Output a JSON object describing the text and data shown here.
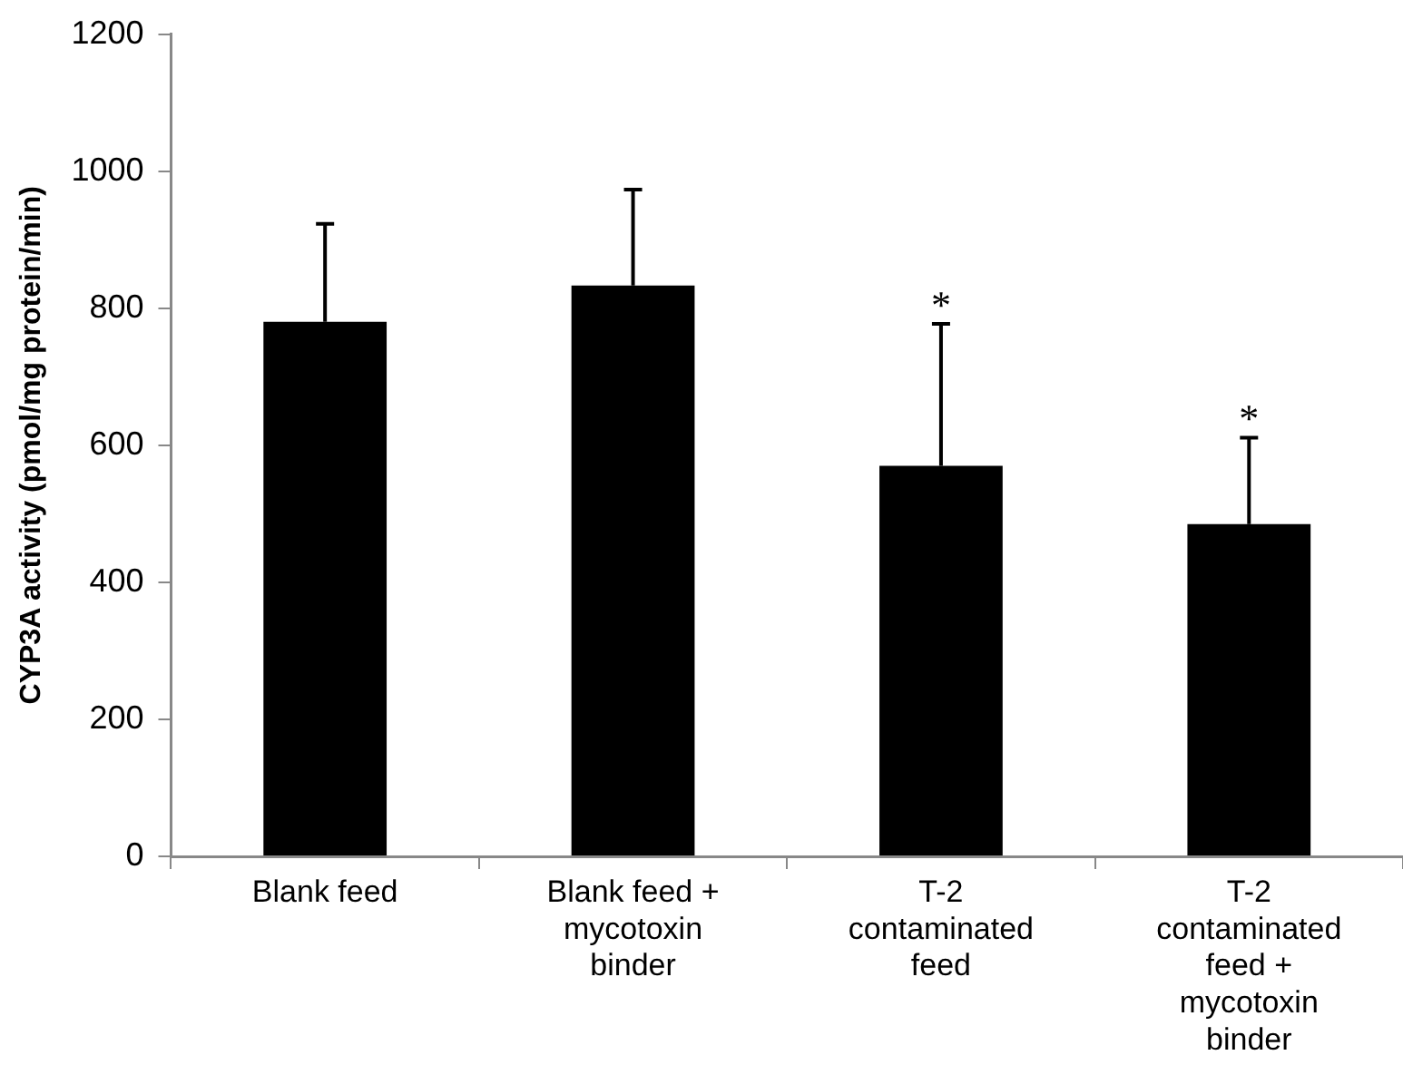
{
  "chart_data": {
    "type": "bar",
    "ylabel": "CYP3A activity (pmol/mg protein/min)",
    "categories": [
      "Blank feed",
      "Blank feed + mycotoxin binder",
      "T-2 contaminated feed",
      "T-2 contaminated feed + mycotoxin binder"
    ],
    "values": [
      780,
      833,
      570,
      485
    ],
    "color": "#000000",
    "errors": [
      [
        780,
        923
      ],
      [
        833,
        973
      ],
      [
        570,
        777
      ],
      [
        485,
        611
      ]
    ],
    "ylim": [
      0,
      1200
    ],
    "yticks": [
      0,
      200,
      400,
      600,
      800,
      1000,
      1200
    ],
    "grid": false,
    "legend": false,
    "annotations": [
      {
        "text": "*",
        "x": "T-2 contaminated feed",
        "y": 777
      },
      {
        "text": "*",
        "x": "T-2 contaminated feed + mycotoxin binder",
        "y": 611
      }
    ]
  }
}
